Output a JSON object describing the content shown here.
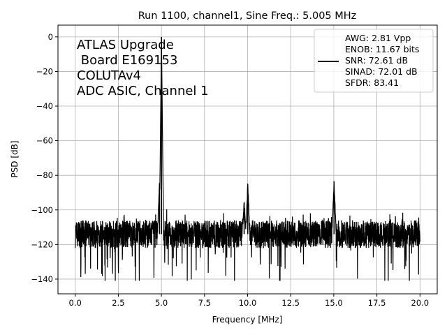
{
  "chart_data": {
    "type": "line",
    "title": "Run 1100, channel1, Sine Freq.: 5.005 MHz",
    "xlabel": "Frequency [MHz]",
    "ylabel": "PSD [dB]",
    "xlim": [
      -1.0,
      21.0
    ],
    "ylim": [
      -148.5,
      6.8
    ],
    "xticks": [
      0.0,
      2.5,
      5.0,
      7.5,
      10.0,
      12.5,
      15.0,
      17.5,
      20.0
    ],
    "xtick_labels": [
      "0.0",
      "2.5",
      "5.0",
      "7.5",
      "10.0",
      "12.5",
      "15.0",
      "17.5",
      "20.0"
    ],
    "yticks": [
      0,
      -20,
      -40,
      -60,
      -80,
      -100,
      -120,
      -140
    ],
    "ytick_labels": [
      "0",
      "−20",
      "−40",
      "−60",
      "−80",
      "−100",
      "−120",
      "−140"
    ],
    "grid": true,
    "annotation_lines": [
      "ATLAS Upgrade",
      " Board E169153",
      "COLUTAv4",
      "ADC ASIC, Channel 1"
    ],
    "legend": {
      "placement": "top-right",
      "lines": [
        "AWG: 2.81 Vpp",
        "ENOB: 11.67 bits",
        "SNR: 72.61 dB",
        "SINAD: 72.01 dB",
        "SFDR: 83.41"
      ]
    },
    "series": [
      {
        "color": "#000000",
        "x_start": 0.0,
        "x_end": 20.0,
        "noise_floor_db": -114,
        "noise_spread_db": 8,
        "noise_min_db": -141,
        "peaks": [
          {
            "x": 5.005,
            "y": 0.0
          },
          {
            "x": 10.01,
            "y": -85.5
          },
          {
            "x": 15.015,
            "y": -83.4
          },
          {
            "x": 4.89,
            "y": -84.5
          },
          {
            "x": 9.8,
            "y": -96.0
          }
        ]
      }
    ]
  }
}
